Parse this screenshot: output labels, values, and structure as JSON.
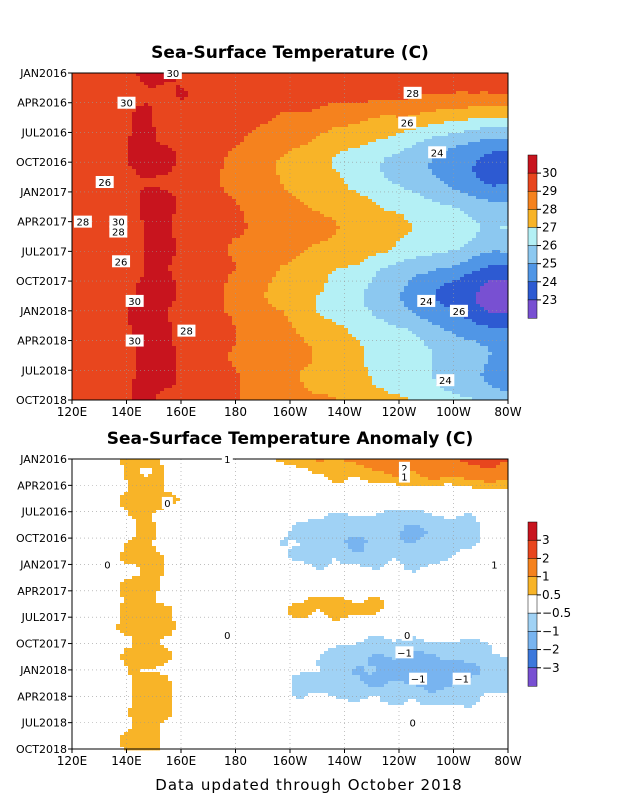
{
  "footer": "Data updated through October 2018",
  "chart_data": [
    {
      "type": "heatmap",
      "title": "Sea-Surface Temperature (C)",
      "xlabel": "",
      "ylabel": "",
      "x_ticks": [
        "120E",
        "140E",
        "160E",
        "180",
        "160W",
        "140W",
        "120W",
        "100W",
        "80W"
      ],
      "y_ticks": [
        "JAN2016",
        "APR2016",
        "JUL2016",
        "OCT2016",
        "JAN2017",
        "APR2017",
        "JUL2017",
        "OCT2017",
        "JAN2018",
        "APR2018",
        "JUL2018",
        "OCT2018"
      ],
      "colorbar": {
        "labels": [
          "30",
          "29",
          "28",
          "27",
          "26",
          "25",
          "24",
          "23"
        ],
        "colors": [
          "#c8141e",
          "#e8461e",
          "#f5821e",
          "#f8b428",
          "#b4f0f5",
          "#8cc8f0",
          "#5096e6",
          "#2d5ad2",
          "#7850d2"
        ]
      },
      "contour_labels": [
        {
          "text": "30",
          "lon": 157,
          "time": "JAN2016"
        },
        {
          "text": "30",
          "lon": 140,
          "time": "APR2016"
        },
        {
          "text": "28",
          "lon": 115,
          "time": "MAR2016"
        },
        {
          "text": "26",
          "lon": 117,
          "time": "JUN2016"
        },
        {
          "text": "24",
          "lon": 106,
          "time": "SEP2016"
        },
        {
          "text": "26",
          "lon": 132,
          "time": "DEC2016"
        },
        {
          "text": "30",
          "lon": 137,
          "time": "APR2017"
        },
        {
          "text": "28",
          "lon": 124,
          "time": "APR2017"
        },
        {
          "text": "28",
          "lon": 137,
          "time": "MAY2017"
        },
        {
          "text": "26",
          "lon": 138,
          "time": "AUG2017"
        },
        {
          "text": "30",
          "lon": 143,
          "time": "DEC2017"
        },
        {
          "text": "24",
          "lon": 110,
          "time": "DEC2017"
        },
        {
          "text": "26",
          "lon": 98,
          "time": "JAN2018"
        },
        {
          "text": "28",
          "lon": 162,
          "time": "MAR2018"
        },
        {
          "text": "30",
          "lon": 143,
          "time": "APR2018"
        },
        {
          "text": "24",
          "lon": 103,
          "time": "AUG2018"
        }
      ]
    },
    {
      "type": "heatmap",
      "title": "Sea-Surface Temperature Anomaly (C)",
      "xlabel": "",
      "ylabel": "",
      "x_ticks": [
        "120E",
        "140E",
        "160E",
        "180",
        "160W",
        "140W",
        "120W",
        "100W",
        "80W"
      ],
      "y_ticks": [
        "JAN2016",
        "APR2016",
        "JUL2016",
        "OCT2016",
        "JAN2017",
        "APR2017",
        "JUL2017",
        "OCT2017",
        "JAN2018",
        "APR2018",
        "JUL2018",
        "OCT2018"
      ],
      "colorbar": {
        "labels": [
          "3",
          "2",
          "1",
          "0.5",
          "−0.5",
          "−1",
          "−2",
          "−3"
        ],
        "colors": [
          "#c8141e",
          "#e8461e",
          "#f5821e",
          "#f8b428",
          "#ffffff",
          "#a0d2f5",
          "#78b4f0",
          "#3c78dc",
          "#7850d2"
        ]
      },
      "contour_labels": [
        {
          "text": "1",
          "lon": 177,
          "time": "JAN2016"
        },
        {
          "text": "2",
          "lon": 118,
          "time": "FEB2016"
        },
        {
          "text": "1",
          "lon": 118,
          "time": "MAR2016"
        },
        {
          "text": "0",
          "lon": 155,
          "time": "JUN2016"
        },
        {
          "text": "1",
          "lon": 85,
          "time": "JAN2017"
        },
        {
          "text": "0",
          "lon": 133,
          "time": "JAN2017"
        },
        {
          "text": "0",
          "lon": 177,
          "time": "SEP2017"
        },
        {
          "text": "0",
          "lon": 117,
          "time": "SEP2017"
        },
        {
          "text": "−1",
          "lon": 118,
          "time": "NOV2017"
        },
        {
          "text": "−1",
          "lon": 113,
          "time": "FEB2018"
        },
        {
          "text": "−1",
          "lon": 97,
          "time": "FEB2018"
        },
        {
          "text": "0",
          "lon": 115,
          "time": "JUL2018"
        }
      ]
    }
  ]
}
